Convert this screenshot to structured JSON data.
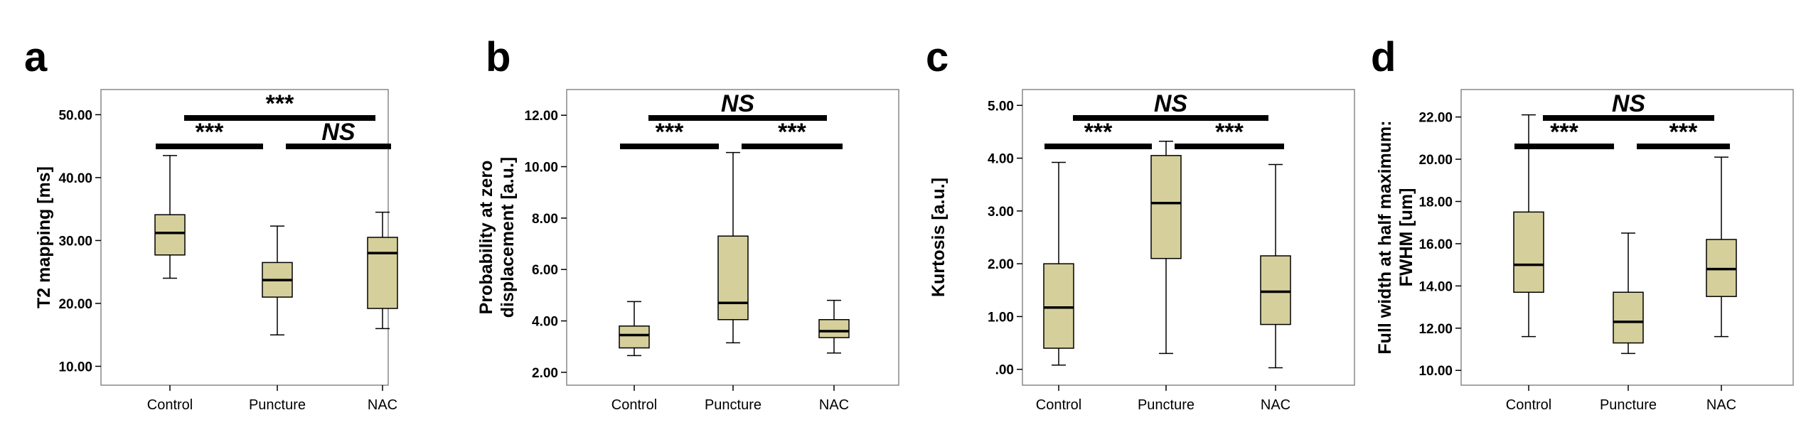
{
  "chart_data": [
    {
      "panel": "a",
      "type": "box",
      "ylabel": "T2 mapping [ms]",
      "yticks": [
        "10.00",
        "20.00",
        "30.00",
        "40.00",
        "50.00"
      ],
      "ylim": [
        7,
        54
      ],
      "categories": [
        "Control",
        "Puncture",
        "NAC"
      ],
      "box_color": "#d5cf9b",
      "boxes": [
        {
          "whisker_low": 24.0,
          "q1": 27.7,
          "median": 31.2,
          "q3": 34.1,
          "whisker_high": 43.5
        },
        {
          "whisker_low": 15.0,
          "q1": 21.0,
          "median": 23.7,
          "q3": 26.5,
          "whisker_high": 32.3
        },
        {
          "whisker_low": 16.0,
          "q1": 19.2,
          "median": 28.0,
          "q3": 30.5,
          "whisker_high": 34.5
        }
      ],
      "comparisons": [
        {
          "from": 0,
          "to": 2,
          "label": "***",
          "level": 2
        },
        {
          "from": 0,
          "to": 1,
          "label": "***",
          "level": 1
        },
        {
          "from": 1,
          "to": 2,
          "label": "NS",
          "level": 1
        }
      ]
    },
    {
      "panel": "b",
      "type": "box",
      "ylabel": "Probability at zero displacement [a.u.]",
      "ylabel_lines": [
        "Probability at zero",
        "displacement [a.u.]"
      ],
      "yticks": [
        "2.00",
        "4.00",
        "6.00",
        "8.00",
        "10.00",
        "12.00"
      ],
      "ylim": [
        1.5,
        13.0
      ],
      "categories": [
        "Control",
        "Puncture",
        "NAC"
      ],
      "box_color": "#d5cf9b",
      "boxes": [
        {
          "whisker_low": 2.65,
          "q1": 2.95,
          "median": 3.45,
          "q3": 3.8,
          "whisker_high": 4.75
        },
        {
          "whisker_low": 3.15,
          "q1": 4.05,
          "median": 4.7,
          "q3": 7.3,
          "whisker_high": 10.55
        },
        {
          "whisker_low": 2.75,
          "q1": 3.35,
          "median": 3.6,
          "q3": 4.05,
          "whisker_high": 4.8
        }
      ],
      "comparisons": [
        {
          "from": 0,
          "to": 2,
          "label": "NS",
          "level": 2
        },
        {
          "from": 0,
          "to": 1,
          "label": "***",
          "level": 1
        },
        {
          "from": 1,
          "to": 2,
          "label": "***",
          "level": 1
        }
      ]
    },
    {
      "panel": "c",
      "type": "box",
      "ylabel": "Kurtosis [a.u.]",
      "yticks": [
        ".00",
        "1.00",
        "2.00",
        "3.00",
        "4.00",
        "5.00"
      ],
      "ylim": [
        -0.3,
        5.3
      ],
      "categories": [
        "Control",
        "Puncture",
        "NAC"
      ],
      "box_color": "#d5cf9b",
      "boxes": [
        {
          "whisker_low": 0.08,
          "q1": 0.4,
          "median": 1.17,
          "q3": 2.0,
          "whisker_high": 3.92
        },
        {
          "whisker_low": 0.3,
          "q1": 2.1,
          "median": 3.15,
          "q3": 4.05,
          "whisker_high": 4.32
        },
        {
          "whisker_low": 0.03,
          "q1": 0.85,
          "median": 1.47,
          "q3": 2.15,
          "whisker_high": 3.88
        }
      ],
      "comparisons": [
        {
          "from": 0,
          "to": 2,
          "label": "NS",
          "level": 2
        },
        {
          "from": 0,
          "to": 1,
          "label": "***",
          "level": 1
        },
        {
          "from": 1,
          "to": 2,
          "label": "***",
          "level": 1
        }
      ]
    },
    {
      "panel": "d",
      "type": "box",
      "ylabel": "Full width at half maximum: FWHM [um]",
      "ylabel_lines": [
        "Full width at half maximum:",
        "FWHM [um]"
      ],
      "yticks": [
        "10.00",
        "12.00",
        "14.00",
        "16.00",
        "18.00",
        "20.00",
        "22.00"
      ],
      "ylim": [
        9.3,
        23.3
      ],
      "categories": [
        "Control",
        "Puncture",
        "NAC"
      ],
      "box_color": "#d5cf9b",
      "boxes": [
        {
          "whisker_low": 11.6,
          "q1": 13.7,
          "median": 15.0,
          "q3": 17.5,
          "whisker_high": 22.1
        },
        {
          "whisker_low": 10.8,
          "q1": 11.3,
          "median": 12.3,
          "q3": 13.7,
          "whisker_high": 16.5
        },
        {
          "whisker_low": 11.6,
          "q1": 13.5,
          "median": 14.8,
          "q3": 16.2,
          "whisker_high": 20.1
        }
      ],
      "comparisons": [
        {
          "from": 0,
          "to": 2,
          "label": "NS",
          "level": 2
        },
        {
          "from": 0,
          "to": 1,
          "label": "***",
          "level": 1
        },
        {
          "from": 1,
          "to": 2,
          "label": "***",
          "level": 1
        }
      ]
    }
  ]
}
